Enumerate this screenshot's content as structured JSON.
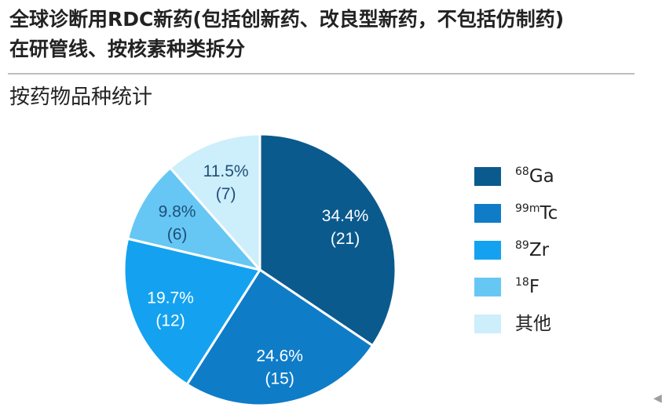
{
  "header": {
    "title_line1": "全球诊断用RDC新药(包括创新药、改良型新药，不包括仿制药)",
    "title_line2": "在研管线、按核素种类拆分",
    "subtitle": "按药物品种统计"
  },
  "chart_data": {
    "type": "pie",
    "categories": [
      "68Ga",
      "99mTc",
      "89Zr",
      "18F",
      "其他"
    ],
    "legend_labels": [
      {
        "sup": "68",
        "base": "Ga"
      },
      {
        "sup": "99m",
        "base": "Tc"
      },
      {
        "sup": "89",
        "base": "Zr"
      },
      {
        "sup": "18",
        "base": "F"
      },
      {
        "sup": "",
        "base": "其他"
      }
    ],
    "values": [
      21,
      15,
      12,
      6,
      7
    ],
    "percent_labels": [
      "34.4%",
      "24.6%",
      "19.7%",
      "9.8%",
      "11.5%"
    ],
    "count_labels": [
      "(21)",
      "(15)",
      "(12)",
      "(6)",
      "(7)"
    ],
    "colors": [
      "#0b5a8e",
      "#0f7cc8",
      "#14a2f0",
      "#66c7f4",
      "#cdeefb"
    ],
    "label_colors": [
      "#ffffff",
      "#ffffff",
      "#ffffff",
      "#1f4f78",
      "#1f4f78"
    ],
    "start": "12 o'clock",
    "direction": "clockwise",
    "legend_position": "right"
  },
  "footer": {
    "corner_mark": "◀"
  }
}
